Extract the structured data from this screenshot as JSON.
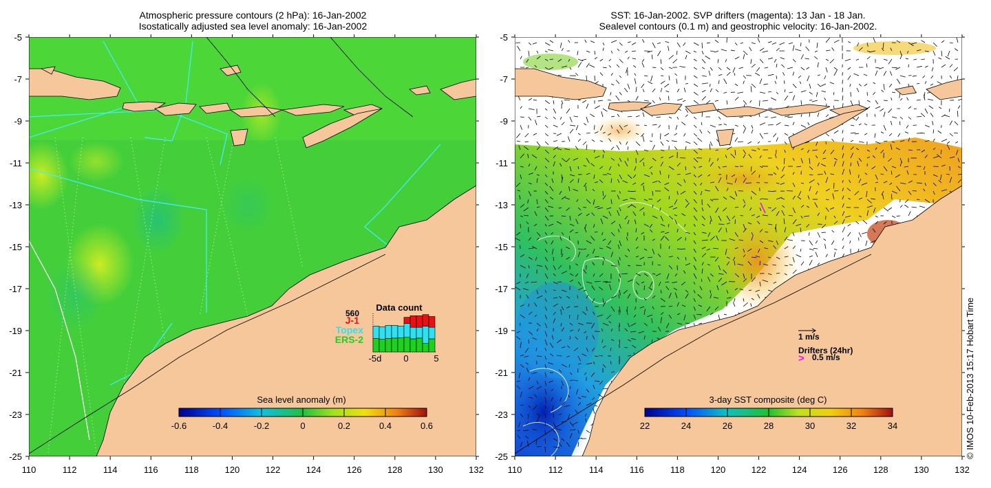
{
  "left_panel": {
    "title_line1": "Atmospheric pressure contours (2 hPa): 16-Jan-2002",
    "title_line2": "Isostatically adjusted sea level anomaly: 16-Jan-2002",
    "colorbar": {
      "title": "Sea level anomaly (m)",
      "tick_labels": [
        "-0.6",
        "-0.4",
        "-0.2",
        "0",
        "0.2",
        "0.4",
        "0.6"
      ],
      "range": [
        -0.6,
        0.6
      ]
    },
    "data_count": {
      "title": "Data count",
      "max_label": "560",
      "legend": [
        {
          "label": "J-1",
          "color": "#e81010"
        },
        {
          "label": "Topex",
          "color": "#30e0f0"
        },
        {
          "label": "ERS-2",
          "color": "#20d020"
        }
      ],
      "x_labels": [
        "-5d",
        "0",
        "5"
      ],
      "bars": [
        {
          "ers2": 0.35,
          "topex": 0.32,
          "j1": 0.0
        },
        {
          "ers2": 0.33,
          "topex": 0.32,
          "j1": 0.0
        },
        {
          "ers2": 0.35,
          "topex": 0.34,
          "j1": 0.0
        },
        {
          "ers2": 0.36,
          "topex": 0.33,
          "j1": 0.0
        },
        {
          "ers2": 0.37,
          "topex": 0.3,
          "j1": 0.0
        },
        {
          "ers2": 0.38,
          "topex": 0.36,
          "j1": 0.16
        },
        {
          "ers2": 0.34,
          "topex": 0.3,
          "j1": 0.3
        },
        {
          "ers2": 0.36,
          "topex": 0.28,
          "j1": 0.3
        },
        {
          "ers2": 0.22,
          "topex": 0.45,
          "j1": 0.3
        },
        {
          "ers2": 0.34,
          "topex": 0.3,
          "j1": 0.28
        }
      ]
    }
  },
  "right_panel": {
    "title_line1": "SST: 16-Jan-2002. SVP drifters (magenta): 13 Jan - 18 Jan.",
    "title_line2": "Sealevel contours (0.1 m) and geostrophic velocity: 16-Jan-2002.",
    "colorbar": {
      "title": "3-day SST composite (deg C)",
      "tick_labels": [
        "22",
        "24",
        "26",
        "28",
        "30",
        "32",
        "34"
      ],
      "range": [
        22,
        34
      ]
    },
    "velocity_legend": {
      "arrow_label": "1 m/s",
      "drifters_label": "Drifters (24hr)",
      "drifter_speed_label": "0.5 m/s",
      "drifter_symbol": ">"
    }
  },
  "axes": {
    "lon_labels": [
      "110",
      "112",
      "114",
      "116",
      "118",
      "120",
      "122",
      "124",
      "126",
      "128",
      "130",
      "132"
    ],
    "lat_labels": [
      "-5",
      "-7",
      "-9",
      "-11",
      "-13",
      "-15",
      "-17",
      "-19",
      "-21",
      "-23",
      "-25"
    ],
    "lon_range": [
      110,
      132
    ],
    "lat_range": [
      -25,
      -5
    ]
  },
  "copyright": "© IMOS 10-Feb-2013 15:17 Hobart Time",
  "colors": {
    "land": "#f5c79a",
    "ocean_left": "#3fd03a",
    "ocean_right": "#7ccf2a",
    "cyan_track": "#40f0ff",
    "contour": "#000000",
    "drifter": "#ff00ff"
  }
}
